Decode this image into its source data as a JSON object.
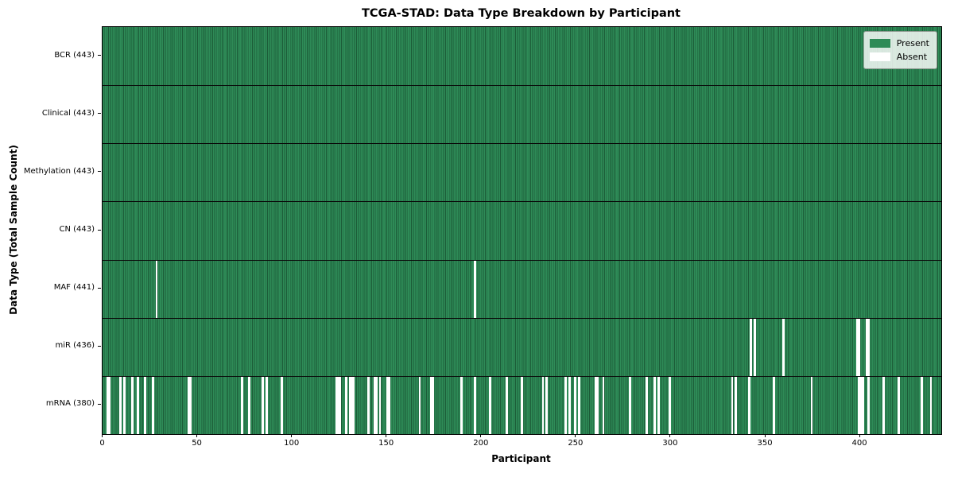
{
  "chart_data": {
    "type": "heatmap",
    "title": "TCGA-STAD: Data Type Breakdown by Participant",
    "xlabel": "Participant",
    "ylabel": "Data Type (Total Sample Count)",
    "x_ticks": [
      0,
      50,
      100,
      150,
      200,
      250,
      300,
      350,
      400
    ],
    "x_range": [
      0,
      443
    ],
    "n_participants": 443,
    "grid": "row separators only",
    "colors": {
      "present": "#2e8b57",
      "present_edge": "#1c5c38",
      "absent": "#ffffff",
      "separator": "#0a0a0a"
    },
    "legend": {
      "position": "upper right",
      "entries": [
        {
          "label": "Present",
          "color": "#2e8b57"
        },
        {
          "label": "Absent",
          "color": "#ffffff"
        }
      ]
    },
    "rows": [
      {
        "label": "BCR (443)",
        "data_type": "BCR",
        "present_count": 443,
        "absent_participants": []
      },
      {
        "label": "Clinical (443)",
        "data_type": "Clinical",
        "present_count": 443,
        "absent_participants": []
      },
      {
        "label": "Methylation (443)",
        "data_type": "Methylation",
        "present_count": 443,
        "absent_participants": []
      },
      {
        "label": "CN (443)",
        "data_type": "CN",
        "present_count": 443,
        "absent_participants": []
      },
      {
        "label": "MAF (441)",
        "data_type": "MAF",
        "present_count": 441,
        "absent_participants": [
          28,
          196
        ]
      },
      {
        "label": "miR (436)",
        "data_type": "miR",
        "present_count": 436,
        "absent_participants": [
          342,
          344,
          359,
          398,
          399,
          403,
          404
        ]
      },
      {
        "label": "mRNA (380)",
        "data_type": "mRNA",
        "present_count": 380,
        "absent_participants": [
          2,
          3,
          9,
          11,
          15,
          18,
          22,
          26,
          45,
          46,
          73,
          77,
          84,
          86,
          94,
          123,
          124,
          125,
          128,
          130,
          131,
          132,
          140,
          143,
          144,
          146,
          150,
          151,
          167,
          173,
          174,
          189,
          196,
          204,
          213,
          221,
          232,
          234,
          244,
          246,
          249,
          251,
          260,
          261,
          264,
          278,
          287,
          291,
          293,
          299,
          332,
          334,
          341,
          354,
          374,
          399,
          400,
          401,
          404,
          412,
          420,
          432,
          437
        ]
      }
    ]
  }
}
